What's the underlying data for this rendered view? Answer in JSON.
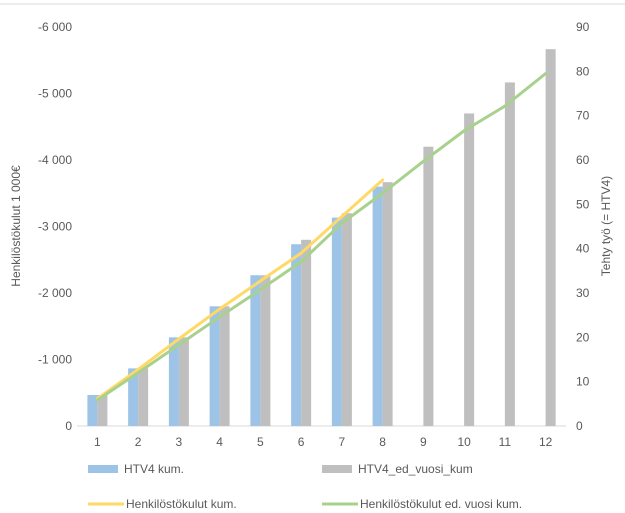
{
  "chart_data": {
    "type": "bar",
    "categories": [
      "1",
      "2",
      "3",
      "4",
      "5",
      "6",
      "7",
      "8",
      "9",
      "10",
      "11",
      "12"
    ],
    "left_axis": {
      "label": "Henkilöstökulut 1 000€",
      "ticks": [
        "0",
        "-1 000",
        "-2 000",
        "-3 000",
        "-4 000",
        "-5 000",
        "-6 000"
      ],
      "range": [
        0,
        -6000
      ]
    },
    "right_axis": {
      "label": "Tehty työ (= HTV4)",
      "ticks": [
        "0",
        "10",
        "20",
        "30",
        "40",
        "50",
        "60",
        "70",
        "80",
        "90"
      ],
      "range": [
        0,
        90
      ]
    },
    "series": [
      {
        "name": "HTV4 kum.",
        "type": "bar",
        "axis": "right",
        "color": "#9DC3E6",
        "values": [
          7,
          13,
          20,
          27,
          34,
          41,
          47,
          54,
          null,
          null,
          null,
          null
        ]
      },
      {
        "name": "HTV4_ed_vuosi_kum",
        "type": "bar",
        "axis": "right",
        "color": "#BFBFBF",
        "values": [
          7,
          13,
          20,
          27,
          34,
          42,
          48,
          55,
          63,
          70.5,
          77.5,
          85
        ]
      },
      {
        "name": "Henkilöstökulut kum.",
        "type": "line",
        "axis": "left",
        "color": "#FFD966",
        "values": [
          -410,
          -850,
          -1310,
          -1760,
          -2180,
          -2600,
          -3150,
          -3700,
          null,
          null,
          null,
          null
        ]
      },
      {
        "name": "Henkilöstökulut ed. vuosi kum.",
        "type": "line",
        "axis": "left",
        "color": "#A9D18E",
        "values": [
          -390,
          -800,
          -1220,
          -1640,
          -2050,
          -2470,
          -3050,
          -3500,
          -3980,
          -4440,
          -4810,
          -5300
        ]
      }
    ],
    "grid": false,
    "legend": "bottom"
  }
}
